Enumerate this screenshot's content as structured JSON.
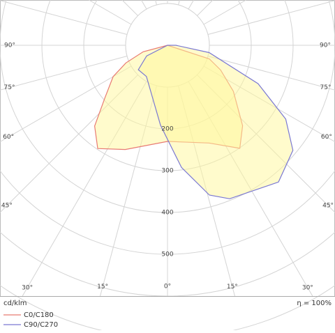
{
  "chart_data": {
    "type": "polar",
    "unit_label": "cd/klm",
    "efficiency_label": "η = 100%",
    "rlim": [
      0,
      800
    ],
    "rgrid": [
      100,
      200,
      300,
      400,
      500,
      600,
      700
    ],
    "rticks": [
      200,
      300,
      400,
      500
    ],
    "angle_ticks": [
      {
        "value": -90,
        "label": "90°"
      },
      {
        "value": -75,
        "label": "75°"
      },
      {
        "value": -60,
        "label": "60°"
      },
      {
        "value": -45,
        "label": "45°"
      },
      {
        "value": -30,
        "label": "30°"
      },
      {
        "value": -15,
        "label": "15°"
      },
      {
        "value": 0,
        "label": "0°"
      },
      {
        "value": 15,
        "label": "15°"
      },
      {
        "value": 30,
        "label": "30°"
      },
      {
        "value": 45,
        "label": "45°"
      },
      {
        "value": 60,
        "label": "60°"
      },
      {
        "value": 75,
        "label": "75°"
      },
      {
        "value": 90,
        "label": "90°"
      }
    ],
    "series": [
      {
        "name": "C0/C180",
        "color": "#e87a72",
        "angles": [
          -90,
          -75,
          -67,
          -60,
          -50,
          -42,
          -34,
          -22,
          0,
          23,
          35,
          43,
          55,
          65,
          72,
          90
        ],
        "values": [
          0,
          60,
          108,
          150,
          195,
          260,
          298,
          269,
          230,
          254,
          301,
          263,
          192,
          140,
          105,
          0
        ]
      },
      {
        "name": "C90/C270",
        "color": "#7a78d2",
        "angles": [
          -90,
          -63,
          -50,
          -34,
          -16,
          -5,
          0,
          6.5,
          15.6,
          22,
          39,
          50,
          58,
          67,
          80,
          90
        ],
        "values": [
          0,
          56,
          91,
          90,
          130,
          192,
          225,
          294,
          372,
          396,
          421,
          391,
          333,
          235,
          101,
          20
        ]
      }
    ]
  }
}
